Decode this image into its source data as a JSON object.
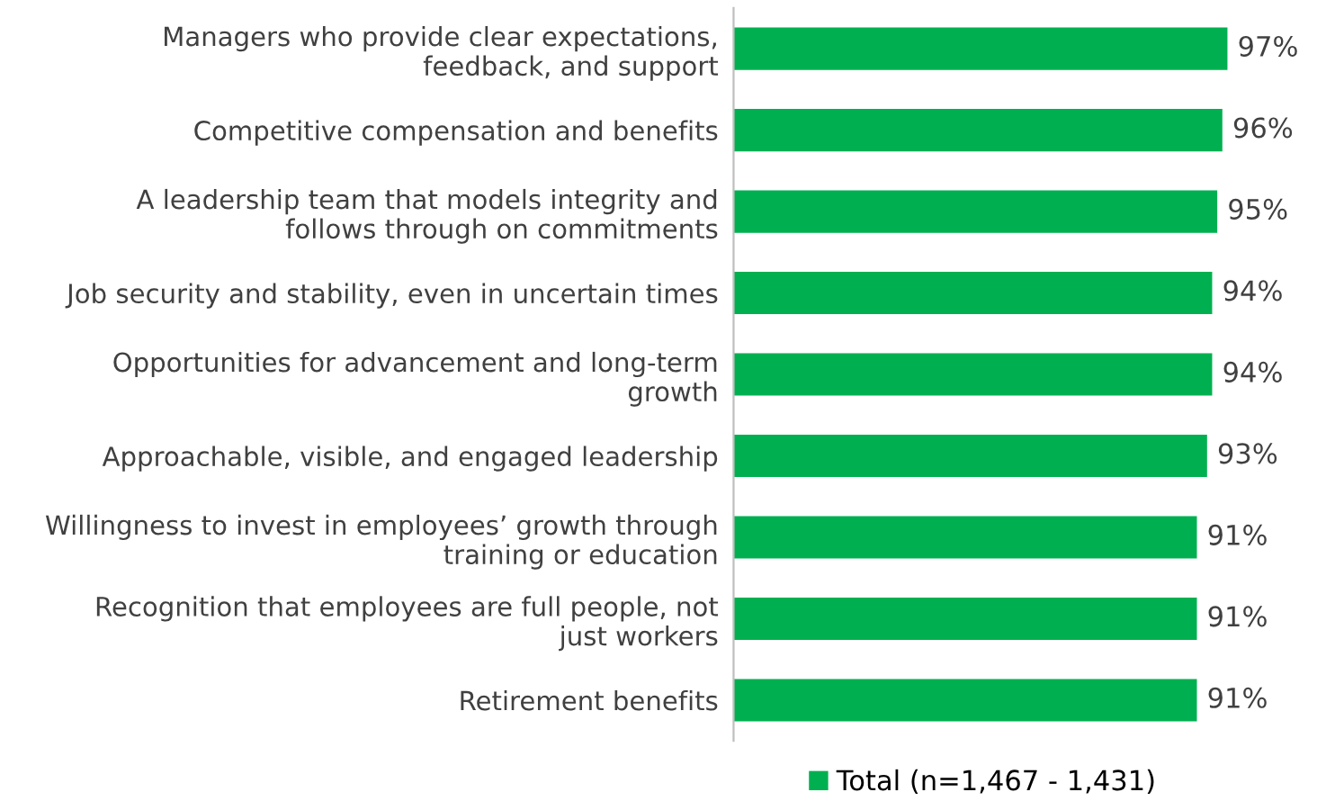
{
  "chart_data": {
    "type": "bar",
    "orientation": "horizontal",
    "categories": [
      "Managers who provide clear expectations,\nfeedback, and support",
      "Competitive compensation and benefits",
      "A leadership team that models integrity and\nfollows through on commitments",
      "Job security and stability, even in uncertain times",
      "Opportunities for advancement and long-term\ngrowth",
      "Approachable, visible, and engaged leadership",
      "Willingness to invest in employees’ growth through\ntraining or education",
      "Recognition that employees are full people, not\njust workers",
      "Retirement benefits"
    ],
    "series": [
      {
        "name": "Total (n=1,467 - 1,431)",
        "color": "#00b050",
        "values": [
          97,
          96,
          95,
          94,
          94,
          93,
          91,
          91,
          91
        ],
        "value_labels": [
          "97%",
          "96%",
          "95%",
          "94%",
          "94%",
          "93%",
          "91%",
          "91%",
          "91%"
        ]
      }
    ],
    "legend": "bottom",
    "grid": false,
    "tick_labels": "y"
  }
}
